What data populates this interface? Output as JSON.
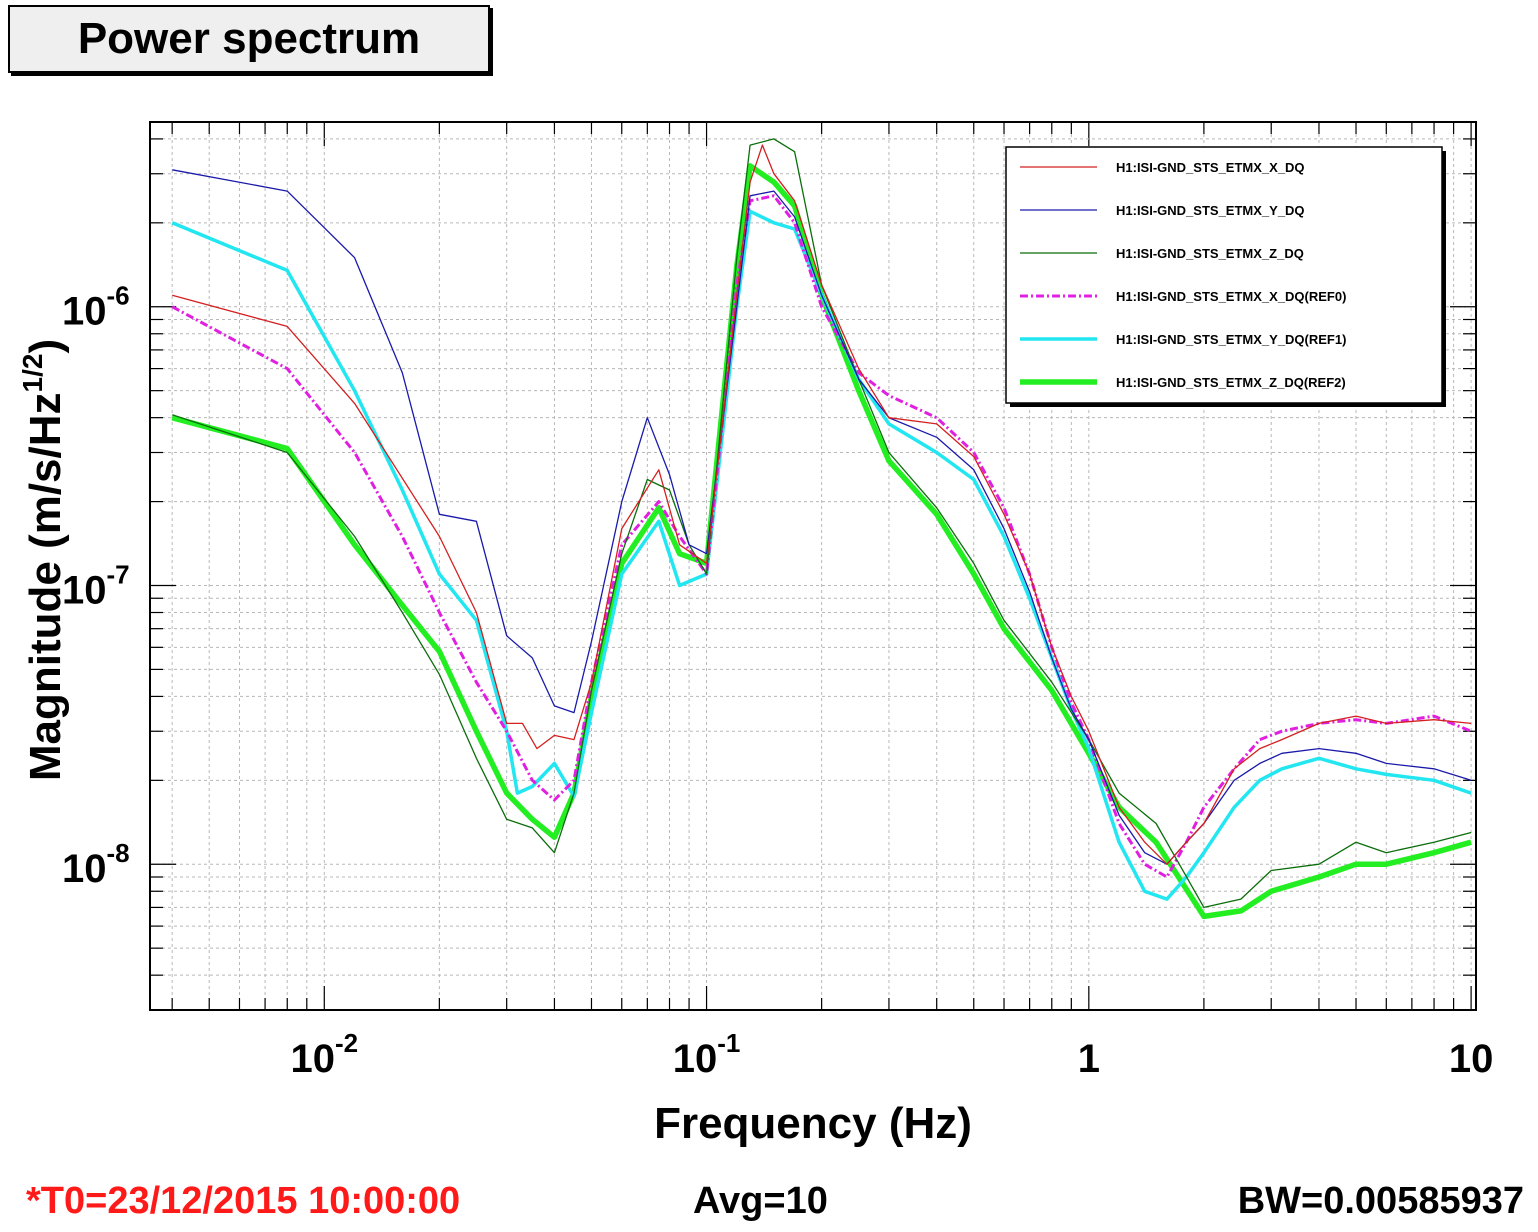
{
  "title": "Power spectrum",
  "footer": {
    "t0": "*T0=23/12/2015 10:00:00",
    "avg": "Avg=10",
    "bw": "BW=0.00585937"
  },
  "colors": {
    "t0_text": "#ff1a1a"
  },
  "chart_data": {
    "type": "line",
    "xlabel": "Frequency (Hz)",
    "ylabel_main": "Magnitude (m/s/Hz",
    "ylabel_sup": "1/2",
    "ylabel_close": ")",
    "x_scale": "log",
    "y_scale": "log",
    "xlim": [
      0.0035,
      10.3
    ],
    "ylim": [
      3e-09,
      4.6e-06
    ],
    "grid": true,
    "legend_position": "top-right",
    "x_ticks": [
      {
        "value": 0.01,
        "base": "10",
        "exp": "-2"
      },
      {
        "value": 0.1,
        "base": "10",
        "exp": "-1"
      },
      {
        "value": 1,
        "base": "1",
        "exp": ""
      },
      {
        "value": 10,
        "base": "10",
        "exp": ""
      }
    ],
    "y_ticks": [
      {
        "value": 1e-08,
        "base": "10",
        "exp": "-8"
      },
      {
        "value": 1e-07,
        "base": "10",
        "exp": "-7"
      },
      {
        "value": 1e-06,
        "base": "10",
        "exp": "-6"
      }
    ],
    "series": [
      {
        "name": "H1:ISI-GND_STS_ETMX_X_DQ",
        "color": "#d42020",
        "style": "thin",
        "points": [
          [
            0.004,
            1.1e-06
          ],
          [
            0.008,
            8.5e-07
          ],
          [
            0.012,
            4.5e-07
          ],
          [
            0.02,
            1.5e-07
          ],
          [
            0.025,
            8e-08
          ],
          [
            0.03,
            3.2e-08
          ],
          [
            0.033,
            3.2e-08
          ],
          [
            0.036,
            2.6e-08
          ],
          [
            0.04,
            2.9e-08
          ],
          [
            0.045,
            2.8e-08
          ],
          [
            0.05,
            4.5e-08
          ],
          [
            0.06,
            1.6e-07
          ],
          [
            0.075,
            2.6e-07
          ],
          [
            0.085,
            1.4e-07
          ],
          [
            0.1,
            1.2e-07
          ],
          [
            0.12,
            1.1e-06
          ],
          [
            0.13,
            2.8e-06
          ],
          [
            0.14,
            3.8e-06
          ],
          [
            0.15,
            3e-06
          ],
          [
            0.17,
            2.4e-06
          ],
          [
            0.2,
            1.2e-06
          ],
          [
            0.25,
            6e-07
          ],
          [
            0.3,
            4e-07
          ],
          [
            0.4,
            3.8e-07
          ],
          [
            0.5,
            2.9e-07
          ],
          [
            0.6,
            1.8e-07
          ],
          [
            0.7,
            1.1e-07
          ],
          [
            0.8,
            6e-08
          ],
          [
            0.9,
            4e-08
          ],
          [
            1.0,
            3e-08
          ],
          [
            1.2,
            1.6e-08
          ],
          [
            1.4,
            1.2e-08
          ],
          [
            1.6,
            1e-08
          ],
          [
            1.8,
            1.2e-08
          ],
          [
            2.0,
            1.4e-08
          ],
          [
            2.4,
            2.2e-08
          ],
          [
            2.8,
            2.6e-08
          ],
          [
            3.2,
            2.8e-08
          ],
          [
            4.0,
            3.2e-08
          ],
          [
            5.0,
            3.4e-08
          ],
          [
            6.0,
            3.2e-08
          ],
          [
            8.0,
            3.3e-08
          ],
          [
            10.0,
            3.2e-08
          ]
        ]
      },
      {
        "name": "H1:ISI-GND_STS_ETMX_Y_DQ",
        "color": "#1a1aaa",
        "style": "thin",
        "points": [
          [
            0.004,
            3.1e-06
          ],
          [
            0.008,
            2.6e-06
          ],
          [
            0.012,
            1.5e-06
          ],
          [
            0.016,
            5.8e-07
          ],
          [
            0.02,
            1.8e-07
          ],
          [
            0.025,
            1.7e-07
          ],
          [
            0.03,
            6.6e-08
          ],
          [
            0.035,
            5.5e-08
          ],
          [
            0.04,
            3.7e-08
          ],
          [
            0.045,
            3.5e-08
          ],
          [
            0.05,
            6.3e-08
          ],
          [
            0.06,
            2e-07
          ],
          [
            0.07,
            4e-07
          ],
          [
            0.08,
            2.5e-07
          ],
          [
            0.09,
            1.4e-07
          ],
          [
            0.1,
            1.3e-07
          ],
          [
            0.12,
            1e-06
          ],
          [
            0.13,
            2.5e-06
          ],
          [
            0.15,
            2.6e-06
          ],
          [
            0.17,
            2.1e-06
          ],
          [
            0.2,
            1.1e-06
          ],
          [
            0.25,
            5.5e-07
          ],
          [
            0.3,
            4e-07
          ],
          [
            0.4,
            3.4e-07
          ],
          [
            0.5,
            2.6e-07
          ],
          [
            0.6,
            1.6e-07
          ],
          [
            0.7,
            9.5e-08
          ],
          [
            0.8,
            5.5e-08
          ],
          [
            0.9,
            3.6e-08
          ],
          [
            1.0,
            2.8e-08
          ],
          [
            1.2,
            1.5e-08
          ],
          [
            1.4,
            1.1e-08
          ],
          [
            1.6,
            1e-08
          ],
          [
            1.8,
            1.2e-08
          ],
          [
            2.0,
            1.4e-08
          ],
          [
            2.4,
            2e-08
          ],
          [
            2.8,
            2.3e-08
          ],
          [
            3.2,
            2.5e-08
          ],
          [
            4.0,
            2.6e-08
          ],
          [
            5.0,
            2.5e-08
          ],
          [
            6.0,
            2.3e-08
          ],
          [
            8.0,
            2.2e-08
          ],
          [
            10.0,
            2e-08
          ]
        ]
      },
      {
        "name": "H1:ISI-GND_STS_ETMX_Z_DQ",
        "color": "#0a6e0a",
        "style": "thin",
        "points": [
          [
            0.004,
            4.1e-07
          ],
          [
            0.008,
            3e-07
          ],
          [
            0.012,
            1.5e-07
          ],
          [
            0.016,
            8e-08
          ],
          [
            0.02,
            4.8e-08
          ],
          [
            0.025,
            2.4e-08
          ],
          [
            0.03,
            1.45e-08
          ],
          [
            0.035,
            1.35e-08
          ],
          [
            0.04,
            1.1e-08
          ],
          [
            0.045,
            1.8e-08
          ],
          [
            0.05,
            4.2e-08
          ],
          [
            0.06,
            1.3e-07
          ],
          [
            0.07,
            2.4e-07
          ],
          [
            0.08,
            2.2e-07
          ],
          [
            0.09,
            1.4e-07
          ],
          [
            0.1,
            1.1e-07
          ],
          [
            0.12,
            1.5e-06
          ],
          [
            0.13,
            3.8e-06
          ],
          [
            0.15,
            4e-06
          ],
          [
            0.17,
            3.6e-06
          ],
          [
            0.2,
            1.2e-06
          ],
          [
            0.25,
            5.5e-07
          ],
          [
            0.3,
            3e-07
          ],
          [
            0.4,
            1.9e-07
          ],
          [
            0.5,
            1.2e-07
          ],
          [
            0.6,
            7.5e-08
          ],
          [
            0.8,
            4.5e-08
          ],
          [
            1.0,
            2.8e-08
          ],
          [
            1.2,
            1.8e-08
          ],
          [
            1.5,
            1.4e-08
          ],
          [
            2.0,
            7e-09
          ],
          [
            2.5,
            7.5e-09
          ],
          [
            3.0,
            9.5e-09
          ],
          [
            4.0,
            1e-08
          ],
          [
            5.0,
            1.2e-08
          ],
          [
            6.0,
            1.1e-08
          ],
          [
            8.0,
            1.2e-08
          ],
          [
            10.0,
            1.3e-08
          ]
        ]
      },
      {
        "name": "H1:ISI-GND_STS_ETMX_X_DQ(REF0)",
        "color": "#e020e0",
        "style": "dashdot",
        "points": [
          [
            0.004,
            1e-06
          ],
          [
            0.008,
            6e-07
          ],
          [
            0.012,
            3e-07
          ],
          [
            0.016,
            1.5e-07
          ],
          [
            0.02,
            8e-08
          ],
          [
            0.025,
            4.5e-08
          ],
          [
            0.03,
            3e-08
          ],
          [
            0.035,
            2e-08
          ],
          [
            0.04,
            1.7e-08
          ],
          [
            0.045,
            2e-08
          ],
          [
            0.05,
            4.5e-08
          ],
          [
            0.06,
            1.4e-07
          ],
          [
            0.075,
            2e-07
          ],
          [
            0.085,
            1.5e-07
          ],
          [
            0.1,
            1.1e-07
          ],
          [
            0.12,
            1.2e-06
          ],
          [
            0.13,
            2.4e-06
          ],
          [
            0.15,
            2.5e-06
          ],
          [
            0.17,
            2e-06
          ],
          [
            0.2,
            1e-06
          ],
          [
            0.25,
            5.8e-07
          ],
          [
            0.3,
            4.8e-07
          ],
          [
            0.4,
            4e-07
          ],
          [
            0.5,
            3e-07
          ],
          [
            0.6,
            1.9e-07
          ],
          [
            0.7,
            1.1e-07
          ],
          [
            0.8,
            6e-08
          ],
          [
            0.9,
            3.8e-08
          ],
          [
            1.0,
            2.8e-08
          ],
          [
            1.2,
            1.4e-08
          ],
          [
            1.4,
            1e-08
          ],
          [
            1.6,
            9e-09
          ],
          [
            1.8,
            1.2e-08
          ],
          [
            2.0,
            1.6e-08
          ],
          [
            2.4,
            2.2e-08
          ],
          [
            2.8,
            2.8e-08
          ],
          [
            3.2,
            3e-08
          ],
          [
            4.0,
            3.2e-08
          ],
          [
            5.0,
            3.3e-08
          ],
          [
            6.0,
            3.2e-08
          ],
          [
            8.0,
            3.4e-08
          ],
          [
            10.0,
            3e-08
          ]
        ]
      },
      {
        "name": "H1:ISI-GND_STS_ETMX_Y_DQ(REF1)",
        "color": "#22e6f0",
        "style": "medium",
        "points": [
          [
            0.004,
            2e-06
          ],
          [
            0.008,
            1.35e-06
          ],
          [
            0.012,
            5e-07
          ],
          [
            0.016,
            2.2e-07
          ],
          [
            0.02,
            1.1e-07
          ],
          [
            0.025,
            7.5e-08
          ],
          [
            0.03,
            3e-08
          ],
          [
            0.032,
            1.8e-08
          ],
          [
            0.035,
            1.9e-08
          ],
          [
            0.04,
            2.3e-08
          ],
          [
            0.045,
            1.75e-08
          ],
          [
            0.05,
            3.5e-08
          ],
          [
            0.06,
            1.1e-07
          ],
          [
            0.075,
            1.7e-07
          ],
          [
            0.085,
            1e-07
          ],
          [
            0.1,
            1.1e-07
          ],
          [
            0.12,
            1e-06
          ],
          [
            0.13,
            2.2e-06
          ],
          [
            0.15,
            2e-06
          ],
          [
            0.17,
            1.9e-06
          ],
          [
            0.2,
            1.1e-06
          ],
          [
            0.25,
            5.5e-07
          ],
          [
            0.3,
            3.8e-07
          ],
          [
            0.4,
            3e-07
          ],
          [
            0.5,
            2.4e-07
          ],
          [
            0.6,
            1.5e-07
          ],
          [
            0.7,
            9e-08
          ],
          [
            0.8,
            5.5e-08
          ],
          [
            0.9,
            3.6e-08
          ],
          [
            1.0,
            2.6e-08
          ],
          [
            1.2,
            1.2e-08
          ],
          [
            1.4,
            8e-09
          ],
          [
            1.6,
            7.5e-09
          ],
          [
            1.8,
            9e-09
          ],
          [
            2.0,
            1.1e-08
          ],
          [
            2.4,
            1.6e-08
          ],
          [
            2.8,
            2e-08
          ],
          [
            3.2,
            2.2e-08
          ],
          [
            4.0,
            2.4e-08
          ],
          [
            5.0,
            2.2e-08
          ],
          [
            6.0,
            2.1e-08
          ],
          [
            8.0,
            2e-08
          ],
          [
            10.0,
            1.8e-08
          ]
        ]
      },
      {
        "name": "H1:ISI-GND_STS_ETMX_Z_DQ(REF2)",
        "color": "#22ee22",
        "style": "thick",
        "points": [
          [
            0.004,
            4e-07
          ],
          [
            0.008,
            3.1e-07
          ],
          [
            0.012,
            1.4e-07
          ],
          [
            0.016,
            8.5e-08
          ],
          [
            0.02,
            5.8e-08
          ],
          [
            0.025,
            3e-08
          ],
          [
            0.03,
            1.8e-08
          ],
          [
            0.035,
            1.45e-08
          ],
          [
            0.04,
            1.25e-08
          ],
          [
            0.045,
            1.8e-08
          ],
          [
            0.05,
            4e-08
          ],
          [
            0.06,
            1.2e-07
          ],
          [
            0.075,
            1.9e-07
          ],
          [
            0.085,
            1.3e-07
          ],
          [
            0.1,
            1.2e-07
          ],
          [
            0.12,
            1.4e-06
          ],
          [
            0.13,
            3.2e-06
          ],
          [
            0.15,
            2.8e-06
          ],
          [
            0.17,
            2.3e-06
          ],
          [
            0.2,
            1.1e-06
          ],
          [
            0.25,
            5e-07
          ],
          [
            0.3,
            2.8e-07
          ],
          [
            0.4,
            1.8e-07
          ],
          [
            0.5,
            1.1e-07
          ],
          [
            0.6,
            7e-08
          ],
          [
            0.8,
            4.2e-08
          ],
          [
            1.0,
            2.5e-08
          ],
          [
            1.2,
            1.6e-08
          ],
          [
            1.5,
            1.2e-08
          ],
          [
            2.0,
            6.5e-09
          ],
          [
            2.5,
            6.8e-09
          ],
          [
            3.0,
            8e-09
          ],
          [
            4.0,
            9e-09
          ],
          [
            5.0,
            1e-08
          ],
          [
            6.0,
            1e-08
          ],
          [
            8.0,
            1.1e-08
          ],
          [
            10.0,
            1.2e-08
          ]
        ]
      }
    ]
  }
}
